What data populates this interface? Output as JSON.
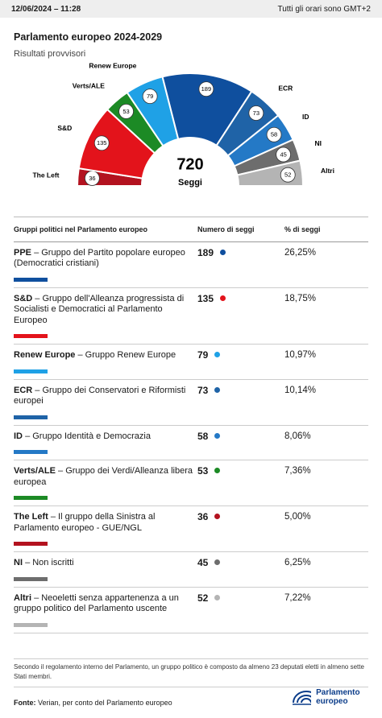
{
  "topbar": {
    "datetime": "12/06/2024 – 11:28",
    "timezone": "Tutti gli orari sono GMT+2"
  },
  "header": {
    "title": "Parlamento europeo 2024-2029",
    "subtitle": "Risultati provvisori"
  },
  "chart_data": {
    "type": "hemicycle",
    "categories": [
      "The Left",
      "S&D",
      "Verts/ALE",
      "Renew Europe",
      "PPE",
      "ECR",
      "ID",
      "NI",
      "Altri"
    ],
    "values": [
      36,
      135,
      53,
      79,
      189,
      73,
      58,
      45,
      52
    ],
    "colors": [
      "#b3121f",
      "#e3131b",
      "#1c8a25",
      "#1fa1e6",
      "#0f4f9e",
      "#1f63a7",
      "#2479c6",
      "#6d6d6d",
      "#b4b4b4"
    ],
    "total": 720,
    "total_label": "Seggi"
  },
  "table": {
    "header": [
      "Gruppi politici nel Parlamento europeo",
      "Numero di seggi",
      "% di seggi"
    ],
    "rows": [
      {
        "name": "PPE",
        "description": "– Gruppo del Partito popolare europeo (Democratici cristiani)",
        "seats": 189,
        "percent": "26,25%",
        "color": "#0f4f9e"
      },
      {
        "name": "S&D",
        "description": "– Gruppo dell'Alleanza progressista di Socialisti e Democratici al Parlamento Europeo",
        "seats": 135,
        "percent": "18,75%",
        "color": "#e3131b"
      },
      {
        "name": "Renew Europe",
        "description": "– Gruppo Renew Europe",
        "seats": 79,
        "percent": "10,97%",
        "color": "#1fa1e6"
      },
      {
        "name": "ECR",
        "description": "– Gruppo dei Conservatori e Riformisti europei",
        "seats": 73,
        "percent": "10,14%",
        "color": "#1f63a7"
      },
      {
        "name": "ID",
        "description": "– Gruppo Identità e Democrazia",
        "seats": 58,
        "percent": "8,06%",
        "color": "#2479c6"
      },
      {
        "name": "Verts/ALE",
        "description": "– Gruppo dei Verdi/Alleanza libera europea",
        "seats": 53,
        "percent": "7,36%",
        "color": "#1c8a25"
      },
      {
        "name": "The Left",
        "description": "– Il gruppo della Sinistra al Parlamento europeo - GUE/NGL",
        "seats": 36,
        "percent": "5,00%",
        "color": "#b3121f"
      },
      {
        "name": "NI",
        "description": "– Non iscritti",
        "seats": 45,
        "percent": "6,25%",
        "color": "#6d6d6d"
      },
      {
        "name": "Altri",
        "description": "– Neoeletti senza appartenenza a un gruppo politico del Parlamento uscente",
        "seats": 52,
        "percent": "7,22%",
        "color": "#b4b4b4"
      }
    ]
  },
  "footer": {
    "note": "Secondo il regolamento interno del Parlamento, un gruppo politico è composto da almeno 23 deputati eletti in almeno sette Stati membri.",
    "source_label": "Fonte:",
    "source": "Verian, per conto del Parlamento europeo",
    "logo": "Parlamento europeo"
  }
}
